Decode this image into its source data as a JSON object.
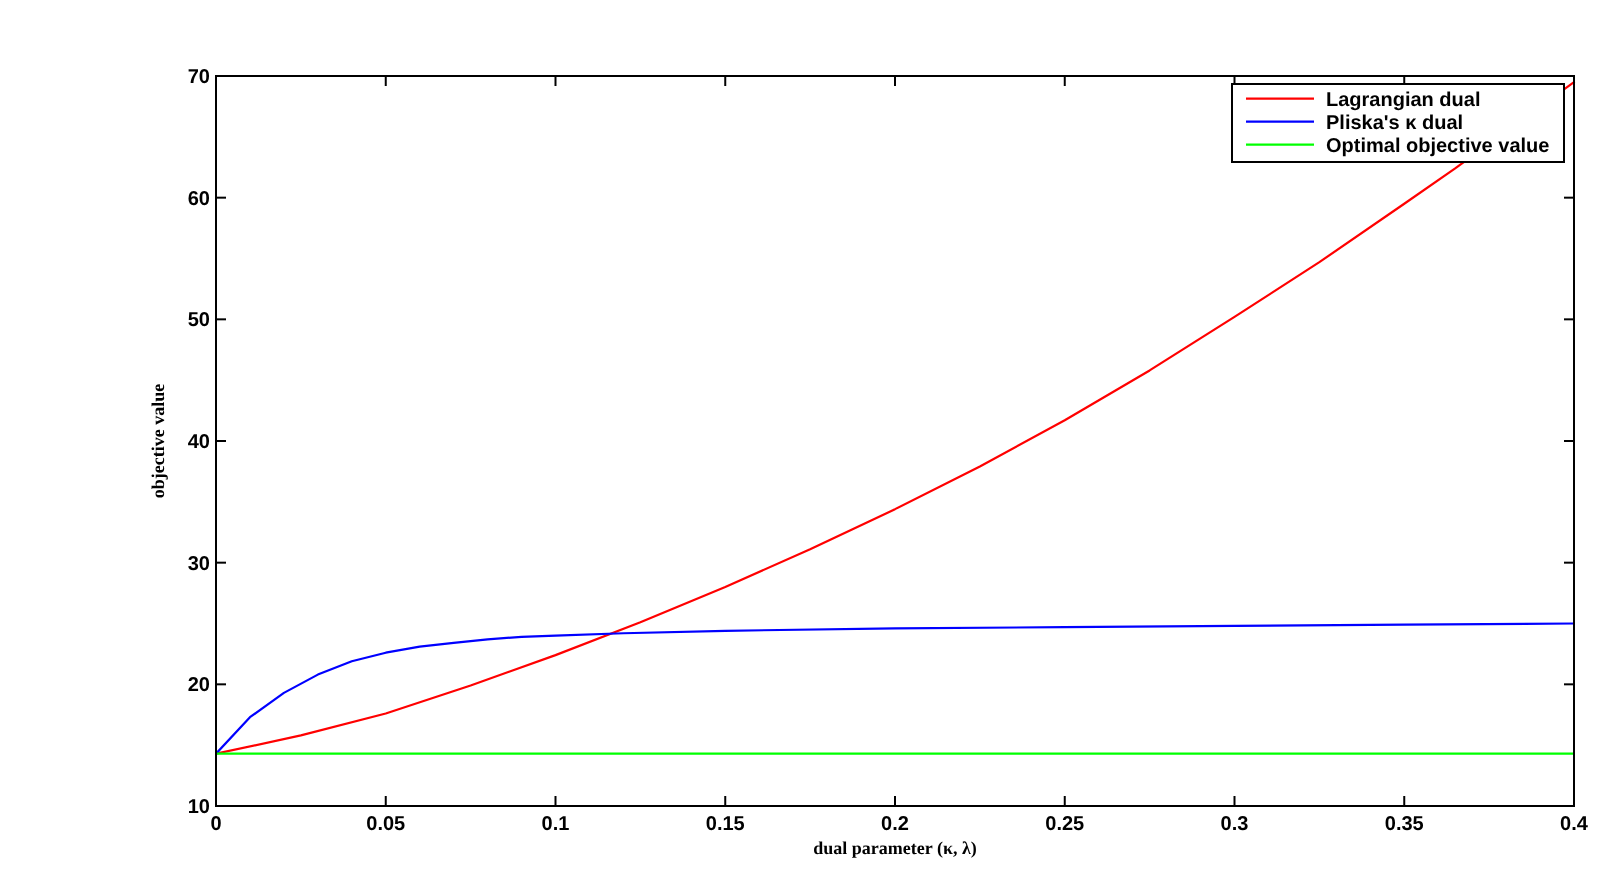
{
  "chart_data": {
    "type": "line",
    "xlabel": "dual parameter (κ, λ)",
    "ylabel": "objective value",
    "xlim": [
      0,
      0.4
    ],
    "ylim": [
      10,
      70
    ],
    "xticks": [
      0,
      0.05,
      0.1,
      0.15,
      0.2,
      0.25,
      0.3,
      0.35,
      0.4
    ],
    "yticks": [
      10,
      20,
      30,
      40,
      50,
      60,
      70
    ],
    "grid": false,
    "legend": "top right",
    "series": [
      {
        "name": "Lagrangian dual",
        "color": "#ff0000",
        "x": [
          0,
          0.025,
          0.05,
          0.075,
          0.1,
          0.125,
          0.15,
          0.175,
          0.2,
          0.225,
          0.25,
          0.275,
          0.3,
          0.325,
          0.35,
          0.365,
          0.4
        ],
        "values": [
          14.3,
          15.8,
          17.6,
          19.9,
          22.4,
          25.1,
          28.0,
          31.1,
          34.4,
          37.9,
          41.7,
          45.8,
          50.2,
          54.7,
          59.5,
          62.4,
          69.5
        ]
      },
      {
        "name": "Pliska's κ dual",
        "color": "#0000ff",
        "x": [
          0,
          0.01,
          0.02,
          0.03,
          0.04,
          0.05,
          0.06,
          0.07,
          0.08,
          0.09,
          0.1,
          0.12,
          0.15,
          0.2,
          0.25,
          0.3,
          0.35,
          0.4
        ],
        "values": [
          14.3,
          17.3,
          19.3,
          20.8,
          21.9,
          22.6,
          23.1,
          23.4,
          23.7,
          23.9,
          24.0,
          24.2,
          24.4,
          24.6,
          24.7,
          24.8,
          24.9,
          25.0
        ]
      },
      {
        "name": "Optimal objective value",
        "color": "#00ff00",
        "x": [
          0,
          0.4
        ],
        "values": [
          14.3,
          14.3
        ]
      }
    ]
  }
}
